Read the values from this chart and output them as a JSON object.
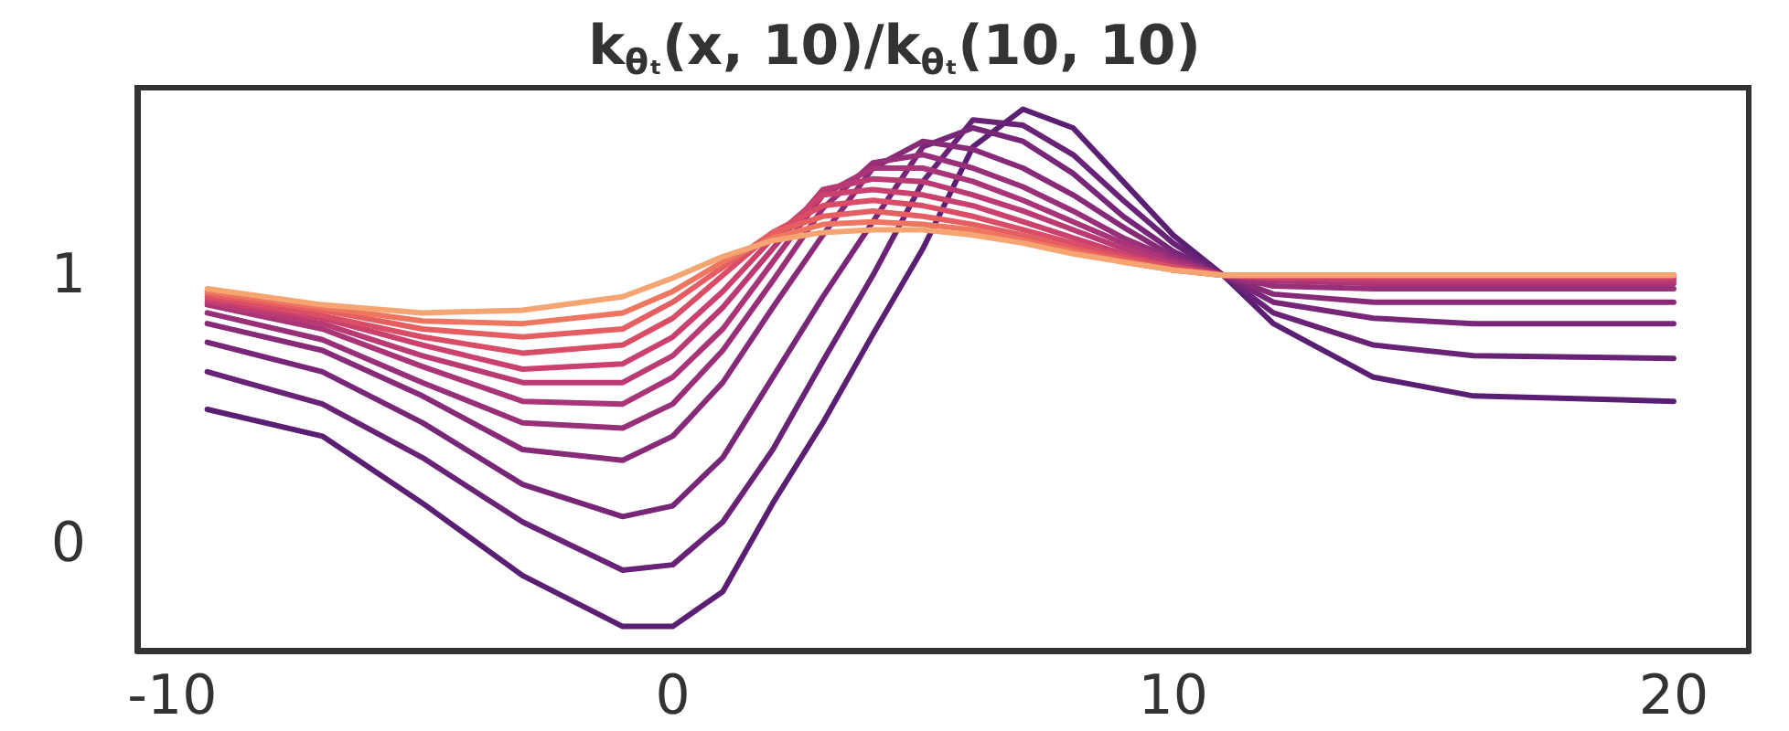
{
  "chart_data": {
    "type": "line",
    "title": "k$_{θₜ}$(x, 10)/k$_{θₜ}$(10, 10)",
    "x": [
      -9.3,
      -7,
      -5,
      -3,
      -1,
      0,
      1,
      2,
      3,
      4,
      5,
      6,
      7,
      8,
      9,
      10,
      11,
      12,
      14,
      16,
      20
    ],
    "xlim": [
      -10.7,
      21.5
    ],
    "xticks": [
      -10,
      0,
      10,
      20
    ],
    "ylim": [
      -0.4,
      1.7
    ],
    "yticks": [
      0,
      1
    ],
    "series": [
      {
        "color": "#5a1f72",
        "values": [
          0.5,
          0.4,
          0.15,
          -0.12,
          -0.31,
          -0.31,
          -0.18,
          0.15,
          0.45,
          0.78,
          1.1,
          1.48,
          1.62,
          1.55,
          1.35,
          1.15,
          1.0,
          0.82,
          0.62,
          0.55,
          0.53
        ]
      },
      {
        "color": "#682276",
        "values": [
          0.64,
          0.52,
          0.32,
          0.08,
          -0.1,
          -0.08,
          0.08,
          0.35,
          0.68,
          1.0,
          1.35,
          1.58,
          1.56,
          1.45,
          1.28,
          1.12,
          1.0,
          0.86,
          0.74,
          0.7,
          0.69
        ]
      },
      {
        "color": "#772678",
        "values": [
          0.75,
          0.64,
          0.45,
          0.22,
          0.1,
          0.14,
          0.32,
          0.62,
          0.92,
          1.2,
          1.48,
          1.55,
          1.5,
          1.38,
          1.22,
          1.09,
          1.0,
          0.9,
          0.84,
          0.82,
          0.82
        ]
      },
      {
        "color": "#872b79",
        "values": [
          0.82,
          0.72,
          0.55,
          0.35,
          0.31,
          0.4,
          0.6,
          0.88,
          1.15,
          1.4,
          1.5,
          1.47,
          1.4,
          1.3,
          1.18,
          1.07,
          1.0,
          0.93,
          0.9,
          0.9,
          0.9
        ]
      },
      {
        "color": "#983079",
        "values": [
          0.86,
          0.76,
          0.6,
          0.45,
          0.43,
          0.52,
          0.72,
          0.98,
          1.25,
          1.42,
          1.45,
          1.4,
          1.33,
          1.24,
          1.14,
          1.06,
          1.0,
          0.96,
          0.95,
          0.95,
          0.95
        ]
      },
      {
        "color": "#a93477",
        "values": [
          0.89,
          0.8,
          0.66,
          0.53,
          0.52,
          0.62,
          0.8,
          1.05,
          1.3,
          1.4,
          1.4,
          1.35,
          1.28,
          1.2,
          1.12,
          1.05,
          1.0,
          0.98,
          0.97,
          0.97,
          0.97
        ]
      },
      {
        "color": "#ba3a73",
        "values": [
          0.9,
          0.82,
          0.7,
          0.6,
          0.6,
          0.7,
          0.88,
          1.1,
          1.32,
          1.36,
          1.35,
          1.3,
          1.24,
          1.17,
          1.1,
          1.04,
          1.0,
          0.99,
          0.98,
          0.98,
          0.98
        ]
      },
      {
        "color": "#ca416d",
        "values": [
          0.91,
          0.84,
          0.74,
          0.65,
          0.67,
          0.77,
          0.94,
          1.14,
          1.3,
          1.32,
          1.3,
          1.26,
          1.2,
          1.14,
          1.08,
          1.03,
          1.0,
          0.99,
          0.99,
          0.99,
          0.99
        ]
      },
      {
        "color": "#d94d67",
        "values": [
          0.92,
          0.85,
          0.77,
          0.71,
          0.74,
          0.84,
          1.0,
          1.16,
          1.26,
          1.28,
          1.26,
          1.22,
          1.17,
          1.12,
          1.07,
          1.03,
          1.0,
          1.0,
          1.0,
          1.0,
          1.0
        ]
      },
      {
        "color": "#e55e61",
        "values": [
          0.93,
          0.87,
          0.8,
          0.77,
          0.8,
          0.9,
          1.03,
          1.16,
          1.22,
          1.24,
          1.22,
          1.19,
          1.15,
          1.1,
          1.06,
          1.02,
          1.0,
          1.0,
          1.0,
          1.0,
          1.0
        ]
      },
      {
        "color": "#ee7660",
        "values": [
          0.94,
          0.88,
          0.83,
          0.82,
          0.86,
          0.94,
          1.05,
          1.14,
          1.19,
          1.2,
          1.19,
          1.17,
          1.13,
          1.09,
          1.05,
          1.02,
          1.0,
          1.0,
          1.0,
          1.0,
          1.0
        ]
      },
      {
        "color": "#f4a572",
        "values": [
          0.95,
          0.89,
          0.86,
          0.87,
          0.92,
          0.99,
          1.07,
          1.13,
          1.16,
          1.17,
          1.17,
          1.15,
          1.12,
          1.08,
          1.05,
          1.02,
          1.0,
          1.0,
          1.0,
          1.0,
          1.0
        ]
      }
    ]
  }
}
